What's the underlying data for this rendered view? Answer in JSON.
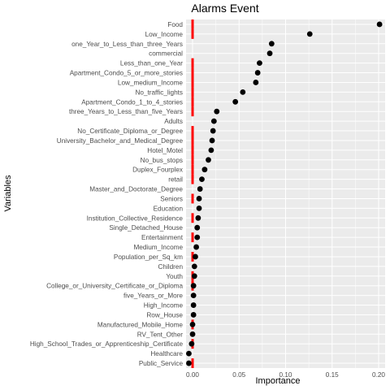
{
  "chart_data": {
    "type": "scatter",
    "title": "Alarms Event",
    "xlabel": "Importance",
    "ylabel": "Variables",
    "xlim": [
      -0.007,
      0.207
    ],
    "xticks": [
      "0.00",
      "0.05",
      "0.10",
      "0.15",
      "0.20"
    ],
    "xtick_values": [
      0.0,
      0.05,
      0.1,
      0.15,
      0.2
    ],
    "grid": true,
    "panel_background": "#ebebeb",
    "grid_color": "#ffffff",
    "point_color": "#000000",
    "reference_line_color": "#ff0000",
    "reference_line_x": 0.0,
    "categories": [
      "Food",
      "Low_Income",
      "one_Year_to_Less_than_three_Years",
      "commercial",
      "Less_than_one_Year",
      "Apartment_Condo_5_or_more_stories",
      "Low_medium_Income",
      "No_traffic_lights",
      "Apartment_Condo_1_to_4_stories",
      "three_Years_to_Less_than_five_Years",
      "Adults",
      "No_Certificate_Diploma_or_Degree",
      "University_Bachelor_and_Medical_Degree",
      "Hotel_Motel",
      "No_bus_stops",
      "Duplex_Fourplex",
      "retail",
      "Master_and_Doctorate_Degree",
      "Seniors",
      "Education",
      "Institution_Collective_Residence",
      "Single_Detached_House",
      "Entertainment",
      "Medium_Income",
      "Population_per_Sq_km",
      "Children",
      "Youth",
      "College_or_University_Certificate_or_Diploma",
      "five_Years_or_More",
      "High_Income",
      "Row_House",
      "Manufactured_Mobile_Home",
      "RV_Tent_Other",
      "High_School_Trades_or_Apprenticeship_Certificate",
      "Healthcare",
      "Public_Service"
    ],
    "values": [
      0.201,
      0.126,
      0.085,
      0.083,
      0.072,
      0.07,
      0.068,
      0.054,
      0.046,
      0.026,
      0.023,
      0.022,
      0.021,
      0.02,
      0.017,
      0.013,
      0.01,
      0.008,
      0.007,
      0.007,
      0.006,
      0.005,
      0.005,
      0.004,
      0.003,
      0.002,
      0.002,
      0.001,
      0.001,
      0.001,
      0.001,
      0.0,
      0.0,
      -0.001,
      -0.004,
      -0.004
    ],
    "reference_marked": [
      true,
      true,
      false,
      false,
      true,
      true,
      true,
      true,
      true,
      true,
      false,
      true,
      true,
      true,
      true,
      true,
      true,
      false,
      true,
      false,
      true,
      false,
      true,
      false,
      true,
      false,
      true,
      true,
      false,
      false,
      false,
      true,
      false,
      true,
      false,
      true
    ]
  }
}
